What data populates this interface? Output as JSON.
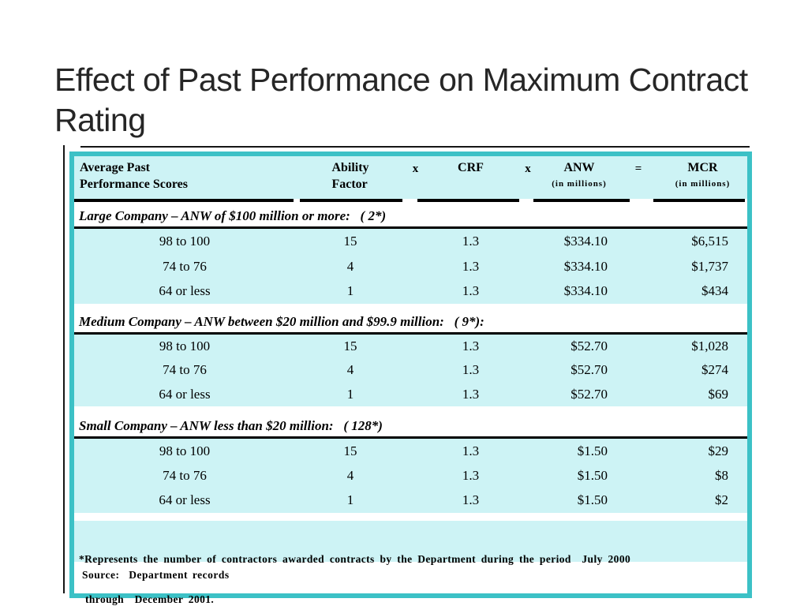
{
  "title": "Effect of Past Performance on Maximum Contract Rating",
  "table": {
    "header": {
      "scores_line1": "Average Past",
      "scores_line2": "Performance Scores",
      "ability_line1": "Ability",
      "ability_line2": "Factor",
      "multiply_1": "x",
      "crf": "CRF",
      "multiply_2": "x",
      "anw": "ANW",
      "anw_sub": "(in millions)",
      "equals": "=",
      "mcr": "MCR",
      "mcr_sub": "(in millions)"
    },
    "sections": [
      {
        "header": "Large Company – ANW of $100 million or more:   ( 2*)",
        "rows": [
          {
            "scores": "98 to 100",
            "ability": "15",
            "crf": "1.3",
            "anw": "$334.10",
            "mcr": "$6,515"
          },
          {
            "scores": "74 to 76",
            "ability": "4",
            "crf": "1.3",
            "anw": "$334.10",
            "mcr": "$1,737"
          },
          {
            "scores": "64 or less",
            "ability": "1",
            "crf": "1.3",
            "anw": "$334.10",
            "mcr": "$434"
          }
        ]
      },
      {
        "header": "Medium Company – ANW between $20 million and $99.9 million:   ( 9*):",
        "rows": [
          {
            "scores": "98 to 100",
            "ability": "15",
            "crf": "1.3",
            "anw": "$52.70",
            "mcr": "$1,028"
          },
          {
            "scores": "74 to 76",
            "ability": "4",
            "crf": "1.3",
            "anw": "$52.70",
            "mcr": "$274"
          },
          {
            "scores": "64 or less",
            "ability": "1",
            "crf": "1.3",
            "anw": "$52.70",
            "mcr": "$69"
          }
        ]
      },
      {
        "header": "Small Company – ANW less than $20 million:   ( 128*)",
        "rows": [
          {
            "scores": "98 to 100",
            "ability": "15",
            "crf": "1.3",
            "anw": "$1.50",
            "mcr": "$29"
          },
          {
            "scores": "74 to 76",
            "ability": "4",
            "crf": "1.3",
            "anw": "$1.50",
            "mcr": "$8"
          },
          {
            "scores": "64 or less",
            "ability": "1",
            "crf": "1.3",
            "anw": "$1.50",
            "mcr": "$2"
          }
        ]
      }
    ],
    "footnote_line1": "*Represents the number of contractors awarded contracts by the Department during the period  July 2000",
    "footnote_line2": "through  December 2001.",
    "source": "Source:  Department records"
  },
  "colors": {
    "table_border": "#3CC1C6",
    "band_background": "#CDF3F5"
  }
}
